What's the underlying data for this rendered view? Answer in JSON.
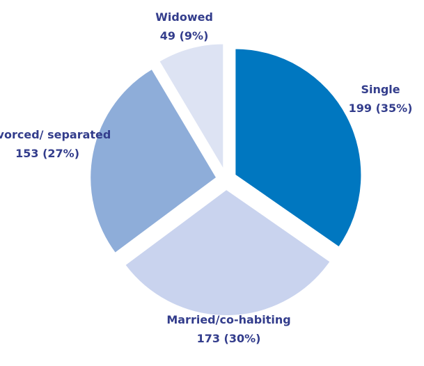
{
  "chart_data": {
    "type": "pie",
    "categories": [
      "Single",
      "Married/co-habiting",
      "Divorced/ separated",
      "Widowed"
    ],
    "values": [
      199,
      173,
      153,
      49
    ],
    "value_labels": [
      "199 (35%)",
      "173 (30%)",
      "153 (27%)",
      "49 (9%)"
    ],
    "colors": [
      "#0077c0",
      "#c9d3ee",
      "#8eadd9",
      "#dde3f3"
    ]
  }
}
